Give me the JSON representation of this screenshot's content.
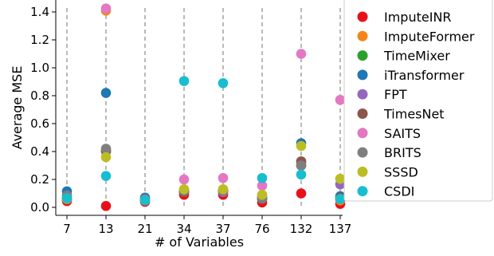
{
  "chart_data": {
    "type": "scatter",
    "xlabel": "# of Variables",
    "ylabel": "Average MSE",
    "categories": [
      "7",
      "13",
      "21",
      "34",
      "37",
      "76",
      "132",
      "137"
    ],
    "yticks": [
      "0.0",
      "0.2",
      "0.4",
      "0.6",
      "0.8",
      "1.0",
      "1.2",
      "1.4"
    ],
    "ylim": [
      0,
      1.5
    ],
    "grid": "vertical dashed lines at each category",
    "legend_position": "right",
    "series": [
      {
        "name": "ImputeINR",
        "color": "#e8111a",
        "values": [
          0.045,
          0.01,
          0.04,
          0.09,
          0.09,
          0.035,
          0.1,
          0.025
        ]
      },
      {
        "name": "ImputeFormer",
        "color": "#f58518",
        "values": [
          0.06,
          1.41,
          0.05,
          0.11,
          0.11,
          0.06,
          0.32,
          0.05
        ]
      },
      {
        "name": "TimeMixer",
        "color": "#2ca02c",
        "values": [
          0.07,
          0.4,
          0.05,
          0.12,
          0.12,
          0.07,
          0.3,
          0.06
        ]
      },
      {
        "name": "iTransformer",
        "color": "#1f77b4",
        "values": [
          0.115,
          0.82,
          0.07,
          0.12,
          0.12,
          0.08,
          0.46,
          0.08
        ]
      },
      {
        "name": "FPT",
        "color": "#9467bd",
        "values": [
          0.06,
          0.4,
          0.05,
          0.11,
          0.11,
          0.06,
          0.3,
          0.165
        ]
      },
      {
        "name": "TimesNet",
        "color": "#8c564b",
        "values": [
          0.06,
          0.41,
          0.05,
          0.11,
          0.12,
          0.06,
          0.33,
          0.07
        ]
      },
      {
        "name": "SAITS",
        "color": "#e377c2",
        "values": [
          0.06,
          1.425,
          0.05,
          0.2,
          0.21,
          0.155,
          1.1,
          0.77
        ]
      },
      {
        "name": "BRITS",
        "color": "#7f7f7f",
        "values": [
          0.085,
          0.42,
          0.06,
          0.12,
          0.12,
          0.065,
          0.3,
          0.06
        ]
      },
      {
        "name": "SSSD",
        "color": "#bcbd22",
        "values": [
          0.06,
          0.36,
          0.05,
          0.13,
          0.13,
          0.09,
          0.44,
          0.205
        ]
      },
      {
        "name": "CSDI",
        "color": "#17becf",
        "values": [
          0.065,
          0.225,
          0.05,
          0.905,
          0.89,
          0.21,
          0.235,
          0.06
        ]
      }
    ]
  }
}
